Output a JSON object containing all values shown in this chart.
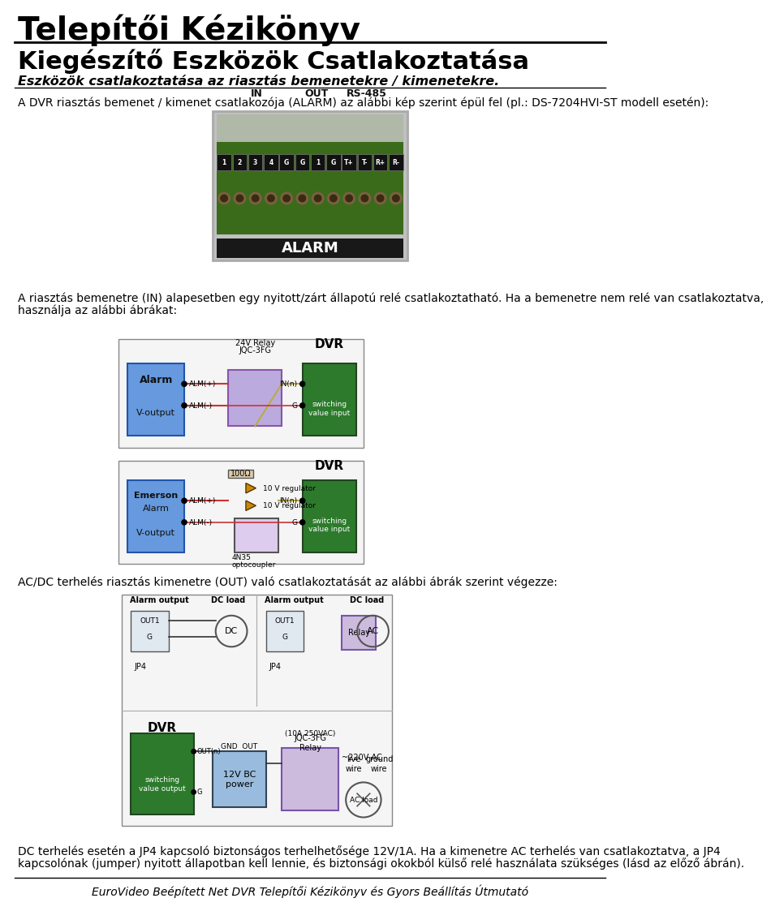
{
  "title": "Telepítői Kézikönyv",
  "subtitle": "Kiegészítő Eszközök Csatlakoztatása",
  "bold_line1": "Eszközök csatlakoztatása az riasztás bemenetekre / kimenetekre.",
  "para1": "A DVR riasztás bemenet / kimenet csatlakozója (ALARM) az alábbi kép szerint épül fel (pl.: DS-7204HVI-ST modell esetén):",
  "para2a": "A riasztás bemenetre (IN) alapesetben egy nyitott/zárt állapotú relé csatlakoztatható. Ha a bemenetre nem relé van csatlakoztatva,",
  "para2b": "használja az alábbi ábrákat:",
  "para3": "AC/DC terhelés riasztás kimenetre (OUT) való csatlakoztatását az alábbi ábrák szerint végezze:",
  "para4a": "DC terhelés esetén a JP4 kapcsoló biztonságos terhelhetősége 12V/1A. Ha a kimenetre AC terhelés van csatlakoztatva, a JP4",
  "para4b": "kapcsolónak (jumper) nyitott állapotban kell lennie, és biztonsági okokból külső relé használata szükséges (lásd az előző ábrán).",
  "footer": "EuroVideo Beépített Net DVR Telepítői Kézikönyv és Gyors Beállítás Útmutató",
  "bg_color": "#ffffff",
  "text_color": "#000000"
}
